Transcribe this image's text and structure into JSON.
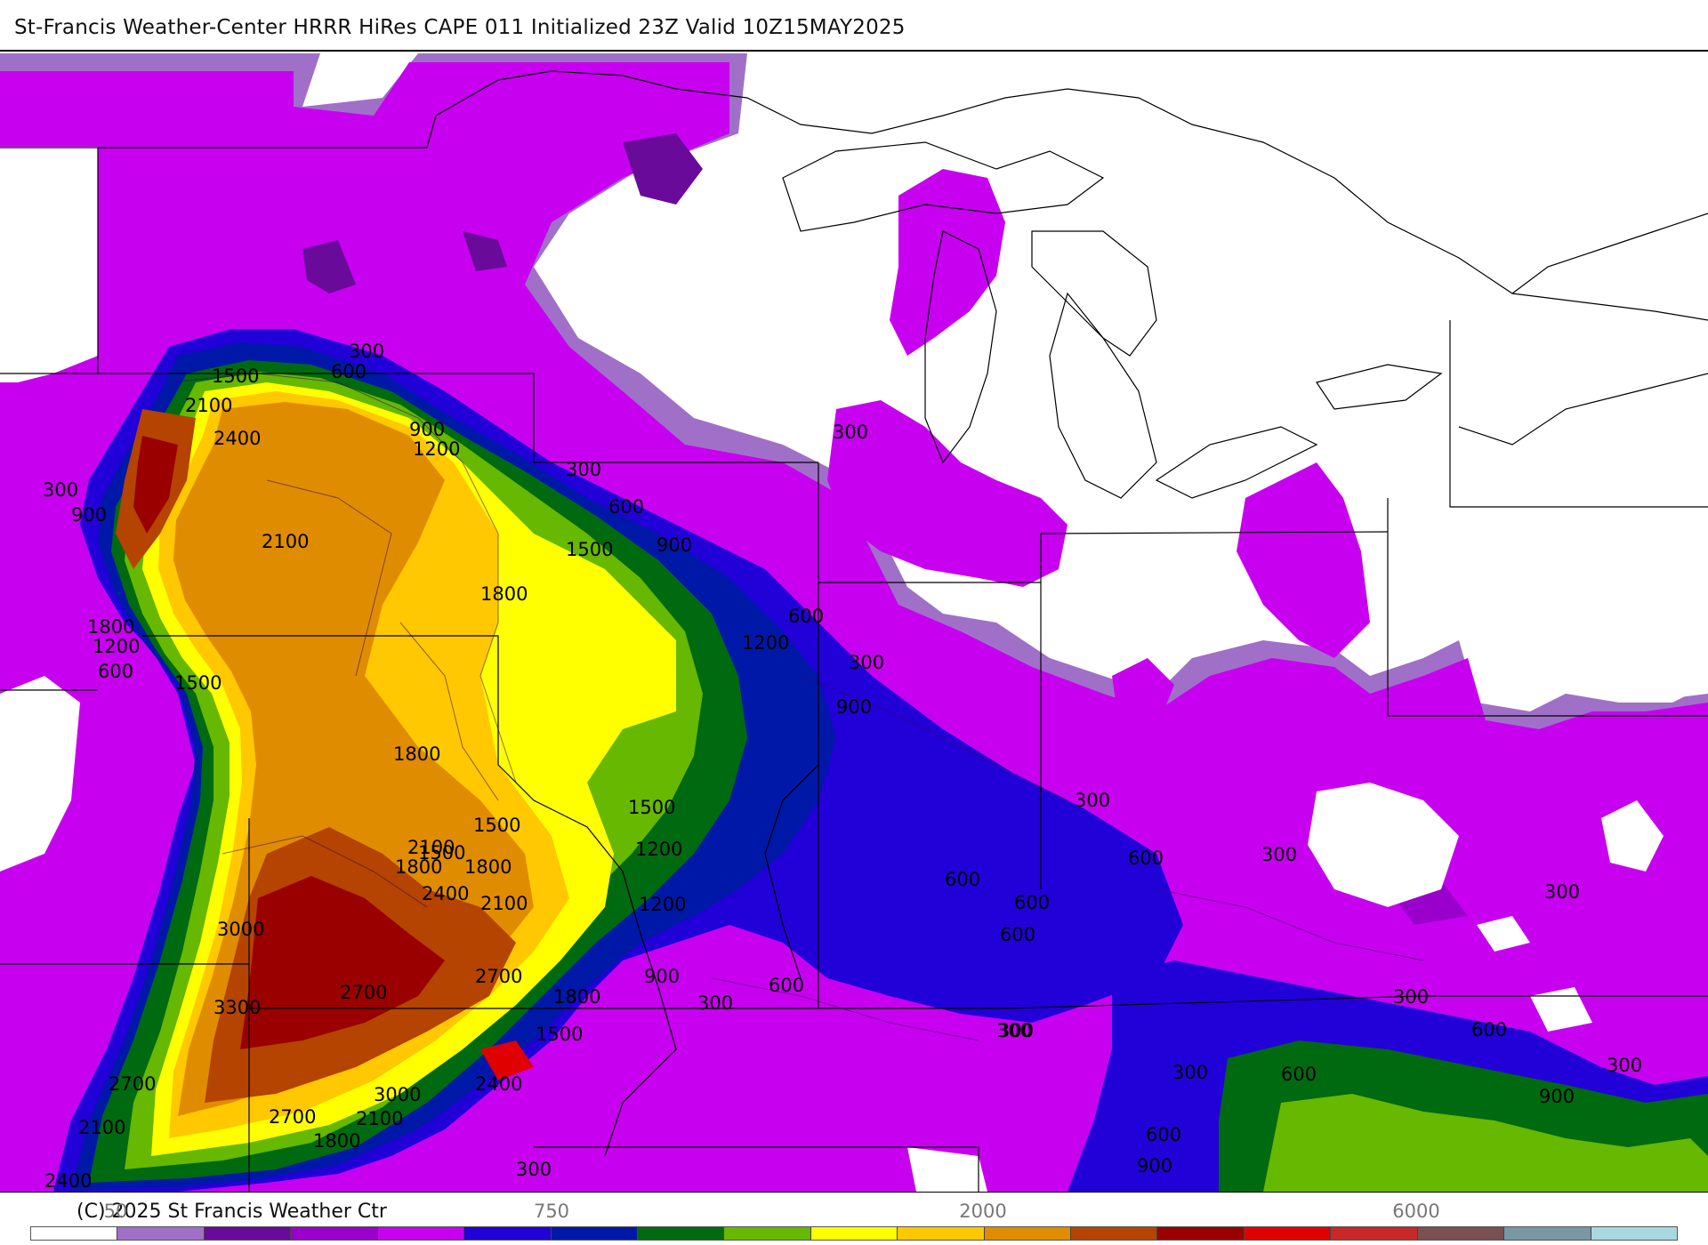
{
  "header": {
    "title": "St-Francis Weather-Center HRRR HiRes CAPE  011 Initialized  23Z Valid 10Z15MAY2025"
  },
  "legend": {
    "copyright": "(C) 2025 St Francis Weather Ctr",
    "tick_labels": [
      "50",
      "750",
      "2000",
      "6000"
    ],
    "bins": [
      {
        "color": "#ffffff"
      },
      {
        "color": "#a070c8"
      },
      {
        "color": "#6a0a9a"
      },
      {
        "color": "#9a00cc"
      },
      {
        "color": "#c800f0"
      },
      {
        "color": "#2200d8"
      },
      {
        "color": "#0018a8"
      },
      {
        "color": "#006a10"
      },
      {
        "color": "#66b800"
      },
      {
        "color": "#ffff00"
      },
      {
        "color": "#ffc800"
      },
      {
        "color": "#e08c00"
      },
      {
        "color": "#b44400"
      },
      {
        "color": "#9a0000"
      },
      {
        "color": "#e00000"
      },
      {
        "color": "#c82828"
      },
      {
        "color": "#7a5050"
      },
      {
        "color": "#7898a4"
      },
      {
        "color": "#a8d8e0"
      }
    ]
  },
  "map": {
    "contour_labels": [
      {
        "text": "300"
      },
      {
        "text": "600"
      },
      {
        "text": "1500"
      },
      {
        "text": "2100"
      },
      {
        "text": "2400"
      },
      {
        "text": "900"
      },
      {
        "text": "1200"
      },
      {
        "text": "300"
      },
      {
        "text": "900"
      },
      {
        "text": "2100"
      },
      {
        "text": "1800"
      },
      {
        "text": "1800"
      },
      {
        "text": "1200"
      },
      {
        "text": "600"
      },
      {
        "text": "1500"
      },
      {
        "text": "300"
      },
      {
        "text": "600"
      },
      {
        "text": "1500"
      },
      {
        "text": "900"
      },
      {
        "text": "1800"
      },
      {
        "text": "1500"
      },
      {
        "text": "600"
      },
      {
        "text": "1200"
      },
      {
        "text": "300"
      },
      {
        "text": "900"
      },
      {
        "text": "1800"
      },
      {
        "text": "1500"
      },
      {
        "text": "1500"
      },
      {
        "text": "2100"
      },
      {
        "text": "1800"
      },
      {
        "text": "2400"
      },
      {
        "text": "2100"
      },
      {
        "text": "1200"
      },
      {
        "text": "1200"
      },
      {
        "text": "3000"
      },
      {
        "text": "3300"
      },
      {
        "text": "2700"
      },
      {
        "text": "2700"
      },
      {
        "text": "900"
      },
      {
        "text": "1800"
      },
      {
        "text": "1500"
      },
      {
        "text": "2700"
      },
      {
        "text": "3000"
      },
      {
        "text": "2400"
      },
      {
        "text": "2700"
      },
      {
        "text": "2100"
      },
      {
        "text": "2100"
      },
      {
        "text": "1800"
      },
      {
        "text": "2400"
      },
      {
        "text": "300"
      },
      {
        "text": "300"
      },
      {
        "text": "600"
      },
      {
        "text": "300"
      },
      {
        "text": "300"
      },
      {
        "text": "600"
      },
      {
        "text": "300"
      },
      {
        "text": "600"
      },
      {
        "text": "600"
      },
      {
        "text": "600"
      },
      {
        "text": "600"
      },
      {
        "text": "300"
      },
      {
        "text": "300"
      },
      {
        "text": "300"
      },
      {
        "text": "600"
      },
      {
        "text": "300"
      },
      {
        "text": "600"
      },
      {
        "text": "300"
      },
      {
        "text": "600"
      },
      {
        "text": "900"
      },
      {
        "text": "900"
      },
      {
        "text": "300"
      }
    ]
  }
}
